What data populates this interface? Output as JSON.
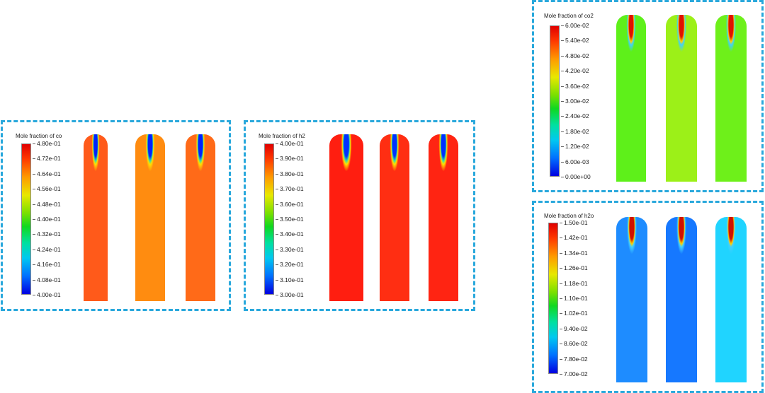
{
  "panels": [
    {
      "id": "co",
      "title": "Mole fraction of co",
      "ticks": [
        "4.80e-01",
        "4.72e-01",
        "4.64e-01",
        "4.56e-01",
        "4.48e-01",
        "4.40e-01",
        "4.32e-01",
        "4.24e-01",
        "4.16e-01",
        "4.08e-01",
        "4.00e-01"
      ],
      "tube_colors": [
        "#ff5a1a",
        "#ff8c10",
        "#ff6a18"
      ],
      "jet_color": "#0020ff"
    },
    {
      "id": "h2",
      "title": "Mole fraction of h2",
      "ticks": [
        "4.00e-01",
        "3.90e-01",
        "3.80e-01",
        "3.70e-01",
        "3.60e-01",
        "3.50e-01",
        "3.40e-01",
        "3.30e-01",
        "3.20e-01",
        "3.10e-01",
        "3.00e-01"
      ],
      "tube_colors": [
        "#ff1e10",
        "#ff2e12",
        "#ff2412"
      ],
      "jet_color": "#0030ff"
    },
    {
      "id": "co2",
      "title": "Mole fraction of co2",
      "ticks": [
        "6.00e-02",
        "5.40e-02",
        "4.80e-02",
        "4.20e-02",
        "3.60e-02",
        "3.00e-02",
        "2.40e-02",
        "1.80e-02",
        "1.20e-02",
        "6.00e-03",
        "0.00e+00"
      ],
      "tube_colors": [
        "#5ef01a",
        "#9cf018",
        "#6ef01a"
      ],
      "jet_color": "#e01000"
    },
    {
      "id": "h2o",
      "title": "Mole fraction of h2o",
      "ticks": [
        "1.50e-01",
        "1.42e-01",
        "1.34e-01",
        "1.26e-01",
        "1.18e-01",
        "1.10e-01",
        "1.02e-01",
        "9.40e-02",
        "8.60e-02",
        "7.80e-02",
        "7.00e-02"
      ],
      "tube_colors": [
        "#1e8cff",
        "#1678ff",
        "#20d4ff"
      ],
      "jet_color": "#d01000"
    }
  ]
}
